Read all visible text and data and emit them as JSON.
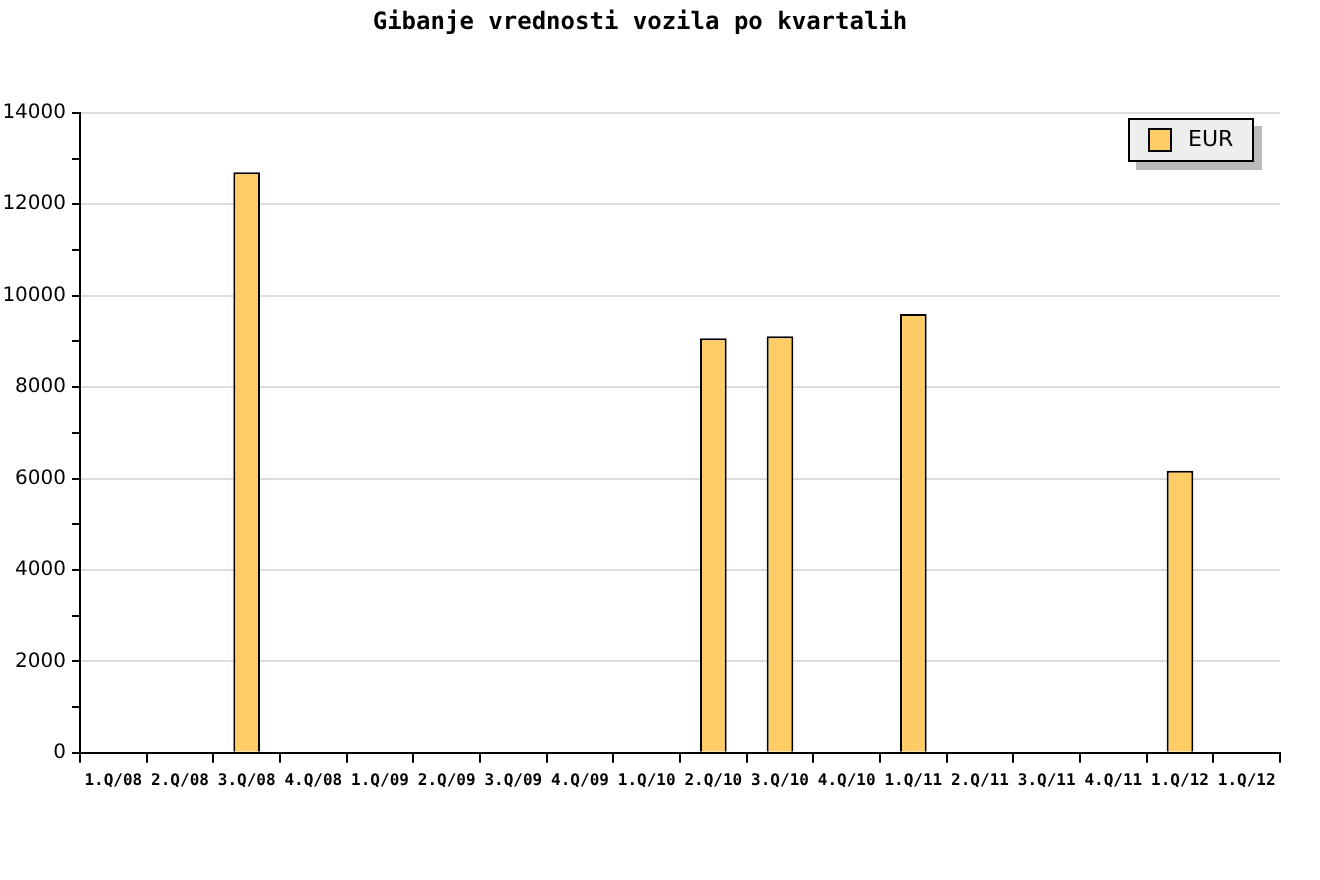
{
  "chart_data": {
    "type": "bar",
    "title": "Gibanje vrednosti vozila po kvartalih",
    "categories": [
      "1.Q/08",
      "2.Q/08",
      "3.Q/08",
      "4.Q/08",
      "1.Q/09",
      "2.Q/09",
      "3.Q/09",
      "4.Q/09",
      "1.Q/10",
      "2.Q/10",
      "3.Q/10",
      "4.Q/10",
      "1.Q/11",
      "2.Q/11",
      "3.Q/11",
      "4.Q/11",
      "1.Q/12",
      "1.Q/12"
    ],
    "series": [
      {
        "name": "EUR",
        "color": "#ffcc66",
        "values": [
          null,
          null,
          12700,
          null,
          null,
          null,
          null,
          null,
          null,
          9070,
          9110,
          null,
          9600,
          null,
          null,
          null,
          6170,
          null
        ]
      }
    ],
    "ylim": [
      0,
      14000
    ],
    "yticks": [
      0,
      {
        "value": 1000,
        "label": null
      },
      2000,
      {
        "value": 3000,
        "label": null
      },
      4000,
      {
        "value": 5000,
        "label": null
      },
      6000,
      {
        "value": 7000,
        "label": null
      },
      8000,
      {
        "value": 9000,
        "label": null
      },
      10000,
      {
        "value": 11000,
        "label": null
      },
      12000,
      {
        "value": 13000,
        "label": null
      },
      14000
    ],
    "grid": "y",
    "legend": "top right"
  }
}
